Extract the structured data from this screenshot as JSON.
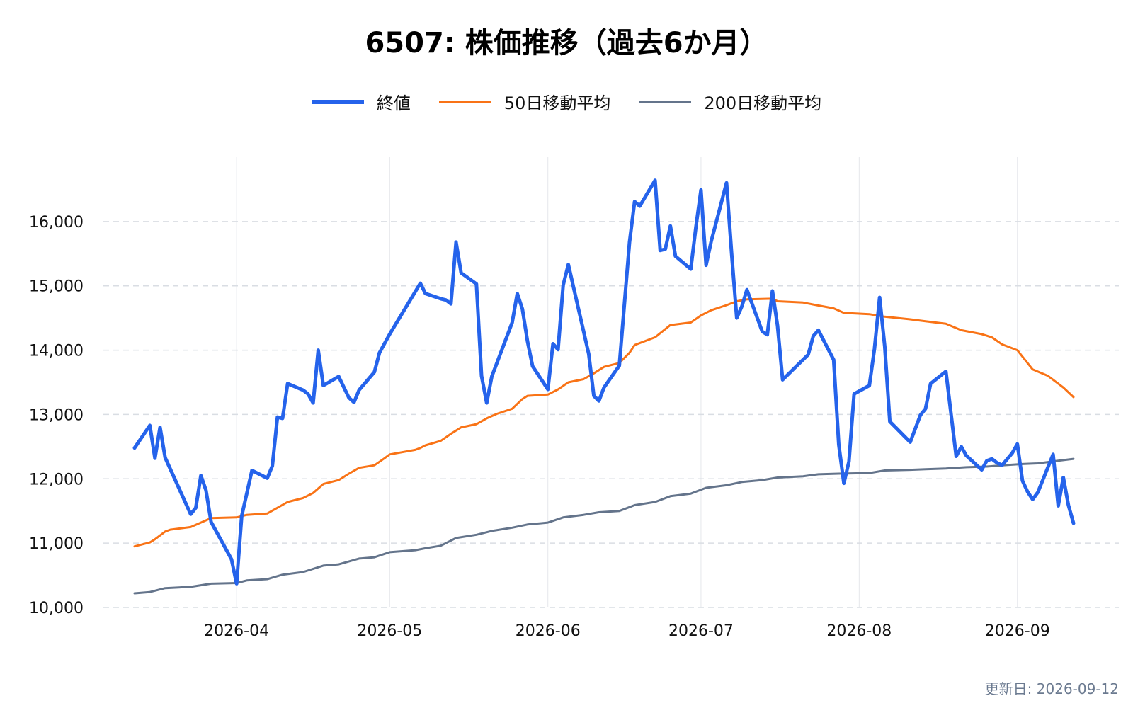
{
  "chart_data": {
    "type": "line",
    "title": "6507: 株価推移（過去6か月）",
    "xlabel": "",
    "ylabel": "",
    "x_range": [
      "2026-03-12",
      "2026-09-12"
    ],
    "ylim": [
      10000,
      17000
    ],
    "y_ticks": [
      10000,
      11000,
      12000,
      13000,
      14000,
      15000,
      16000
    ],
    "y_tick_labels": [
      "10,000",
      "11,000",
      "12,000",
      "13,000",
      "14,000",
      "15,000",
      "16,000"
    ],
    "x_ticks": [
      "2026-04-01",
      "2026-05-01",
      "2026-06-01",
      "2026-07-01",
      "2026-08-01",
      "2026-09-01"
    ],
    "x_tick_labels": [
      "2026-04",
      "2026-05",
      "2026-06",
      "2026-07",
      "2026-08",
      "2026-09"
    ],
    "grid": "horizontal dashed, vertical solid light",
    "legend_position": "top-center",
    "series": [
      {
        "name": "終値",
        "color": "#2563eb",
        "points": [
          [
            "2026-03-12",
            12480
          ],
          [
            "2026-03-15",
            12830
          ],
          [
            "2026-03-16",
            12320
          ],
          [
            "2026-03-17",
            12800
          ],
          [
            "2026-03-18",
            12330
          ],
          [
            "2026-03-23",
            11450
          ],
          [
            "2026-03-24",
            11550
          ],
          [
            "2026-03-25",
            12050
          ],
          [
            "2026-03-26",
            11820
          ],
          [
            "2026-03-27",
            11330
          ],
          [
            "2026-03-31",
            10750
          ],
          [
            "2026-04-01",
            10370
          ],
          [
            "2026-04-02",
            11420
          ],
          [
            "2026-04-04",
            12130
          ],
          [
            "2026-04-07",
            12010
          ],
          [
            "2026-04-08",
            12200
          ],
          [
            "2026-04-09",
            12960
          ],
          [
            "2026-04-10",
            12940
          ],
          [
            "2026-04-11",
            13480
          ],
          [
            "2026-04-14",
            13380
          ],
          [
            "2026-04-15",
            13320
          ],
          [
            "2026-04-16",
            13180
          ],
          [
            "2026-04-17",
            14000
          ],
          [
            "2026-04-18",
            13450
          ],
          [
            "2026-04-21",
            13590
          ],
          [
            "2026-04-23",
            13260
          ],
          [
            "2026-04-24",
            13190
          ],
          [
            "2026-04-25",
            13380
          ],
          [
            "2026-04-28",
            13660
          ],
          [
            "2026-04-29",
            13960
          ],
          [
            "2026-05-01",
            14250
          ],
          [
            "2026-05-07",
            15040
          ],
          [
            "2026-05-08",
            14880
          ],
          [
            "2026-05-11",
            14800
          ],
          [
            "2026-05-12",
            14780
          ],
          [
            "2026-05-13",
            14720
          ],
          [
            "2026-05-14",
            15680
          ],
          [
            "2026-05-15",
            15200
          ],
          [
            "2026-05-18",
            15030
          ],
          [
            "2026-05-19",
            13600
          ],
          [
            "2026-05-20",
            13180
          ],
          [
            "2026-05-21",
            13590
          ],
          [
            "2026-05-25",
            14430
          ],
          [
            "2026-05-26",
            14880
          ],
          [
            "2026-05-27",
            14640
          ],
          [
            "2026-05-28",
            14140
          ],
          [
            "2026-05-29",
            13750
          ],
          [
            "2026-06-01",
            13390
          ],
          [
            "2026-06-02",
            14100
          ],
          [
            "2026-06-03",
            14010
          ],
          [
            "2026-06-04",
            15010
          ],
          [
            "2026-06-05",
            15330
          ],
          [
            "2026-06-08",
            14290
          ],
          [
            "2026-06-09",
            13940
          ],
          [
            "2026-06-10",
            13290
          ],
          [
            "2026-06-11",
            13210
          ],
          [
            "2026-06-12",
            13420
          ],
          [
            "2026-06-15",
            13760
          ],
          [
            "2026-06-17",
            15680
          ],
          [
            "2026-06-18",
            16310
          ],
          [
            "2026-06-19",
            16240
          ],
          [
            "2026-06-22",
            16640
          ],
          [
            "2026-06-23",
            15550
          ],
          [
            "2026-06-24",
            15570
          ],
          [
            "2026-06-25",
            15930
          ],
          [
            "2026-06-26",
            15460
          ],
          [
            "2026-06-29",
            15260
          ],
          [
            "2026-06-30",
            15910
          ],
          [
            "2026-07-01",
            16490
          ],
          [
            "2026-07-02",
            15320
          ],
          [
            "2026-07-03",
            15690
          ],
          [
            "2026-07-06",
            16600
          ],
          [
            "2026-07-07",
            15500
          ],
          [
            "2026-07-08",
            14500
          ],
          [
            "2026-07-09",
            14680
          ],
          [
            "2026-07-10",
            14940
          ],
          [
            "2026-07-13",
            14290
          ],
          [
            "2026-07-14",
            14240
          ],
          [
            "2026-07-15",
            14920
          ],
          [
            "2026-07-16",
            14380
          ],
          [
            "2026-07-17",
            13540
          ],
          [
            "2026-07-22",
            13930
          ],
          [
            "2026-07-23",
            14220
          ],
          [
            "2026-07-24",
            14310
          ],
          [
            "2026-07-27",
            13850
          ],
          [
            "2026-07-28",
            12530
          ],
          [
            "2026-07-29",
            11930
          ],
          [
            "2026-07-30",
            12270
          ],
          [
            "2026-07-31",
            13320
          ],
          [
            "2026-08-03",
            13450
          ],
          [
            "2026-08-04",
            14020
          ],
          [
            "2026-08-05",
            14820
          ],
          [
            "2026-08-06",
            14060
          ],
          [
            "2026-08-07",
            12890
          ],
          [
            "2026-08-11",
            12570
          ],
          [
            "2026-08-13",
            12990
          ],
          [
            "2026-08-14",
            13090
          ],
          [
            "2026-08-15",
            13480
          ],
          [
            "2026-08-18",
            13670
          ],
          [
            "2026-08-20",
            12350
          ],
          [
            "2026-08-21",
            12500
          ],
          [
            "2026-08-22",
            12360
          ],
          [
            "2026-08-25",
            12140
          ],
          [
            "2026-08-26",
            12280
          ],
          [
            "2026-08-27",
            12310
          ],
          [
            "2026-08-28",
            12250
          ],
          [
            "2026-08-29",
            12210
          ],
          [
            "2026-08-31",
            12400
          ],
          [
            "2026-09-01",
            12540
          ],
          [
            "2026-09-02",
            11970
          ],
          [
            "2026-09-03",
            11800
          ],
          [
            "2026-09-04",
            11680
          ],
          [
            "2026-09-05",
            11790
          ],
          [
            "2026-09-08",
            12380
          ],
          [
            "2026-09-09",
            11580
          ],
          [
            "2026-09-10",
            12020
          ],
          [
            "2026-09-11",
            11590
          ],
          [
            "2026-09-12",
            11310
          ]
        ]
      },
      {
        "name": "50日移動平均",
        "color": "#f97316",
        "points": [
          [
            "2026-03-12",
            10950
          ],
          [
            "2026-03-15",
            11010
          ],
          [
            "2026-03-16",
            11060
          ],
          [
            "2026-03-18",
            11180
          ],
          [
            "2026-03-19",
            11210
          ],
          [
            "2026-03-23",
            11250
          ],
          [
            "2026-03-25",
            11320
          ],
          [
            "2026-03-27",
            11390
          ],
          [
            "2026-04-01",
            11400
          ],
          [
            "2026-04-03",
            11440
          ],
          [
            "2026-04-07",
            11460
          ],
          [
            "2026-04-09",
            11550
          ],
          [
            "2026-04-11",
            11640
          ],
          [
            "2026-04-14",
            11700
          ],
          [
            "2026-04-16",
            11780
          ],
          [
            "2026-04-18",
            11920
          ],
          [
            "2026-04-21",
            11980
          ],
          [
            "2026-04-23",
            12080
          ],
          [
            "2026-04-25",
            12170
          ],
          [
            "2026-04-28",
            12210
          ],
          [
            "2026-04-30",
            12320
          ],
          [
            "2026-05-01",
            12380
          ],
          [
            "2026-05-06",
            12450
          ],
          [
            "2026-05-07",
            12480
          ],
          [
            "2026-05-08",
            12520
          ],
          [
            "2026-05-11",
            12590
          ],
          [
            "2026-05-13",
            12700
          ],
          [
            "2026-05-15",
            12800
          ],
          [
            "2026-05-18",
            12850
          ],
          [
            "2026-05-20",
            12940
          ],
          [
            "2026-05-22",
            13010
          ],
          [
            "2026-05-25",
            13090
          ],
          [
            "2026-05-27",
            13240
          ],
          [
            "2026-05-28",
            13290
          ],
          [
            "2026-06-01",
            13310
          ],
          [
            "2026-06-03",
            13390
          ],
          [
            "2026-06-05",
            13500
          ],
          [
            "2026-06-08",
            13550
          ],
          [
            "2026-06-10",
            13640
          ],
          [
            "2026-06-12",
            13740
          ],
          [
            "2026-06-15",
            13800
          ],
          [
            "2026-06-17",
            13960
          ],
          [
            "2026-06-18",
            14080
          ],
          [
            "2026-06-22",
            14200
          ],
          [
            "2026-06-25",
            14390
          ],
          [
            "2026-06-29",
            14430
          ],
          [
            "2026-07-01",
            14540
          ],
          [
            "2026-07-03",
            14620
          ],
          [
            "2026-07-06",
            14700
          ],
          [
            "2026-07-08",
            14760
          ],
          [
            "2026-07-10",
            14790
          ],
          [
            "2026-07-15",
            14800
          ],
          [
            "2026-07-16",
            14760
          ],
          [
            "2026-07-21",
            14740
          ],
          [
            "2026-07-23",
            14710
          ],
          [
            "2026-07-27",
            14650
          ],
          [
            "2026-07-29",
            14580
          ],
          [
            "2026-08-03",
            14560
          ],
          [
            "2026-08-06",
            14520
          ],
          [
            "2026-08-11",
            14480
          ],
          [
            "2026-08-14",
            14450
          ],
          [
            "2026-08-18",
            14410
          ],
          [
            "2026-08-21",
            14310
          ],
          [
            "2026-08-25",
            14250
          ],
          [
            "2026-08-27",
            14200
          ],
          [
            "2026-08-29",
            14090
          ],
          [
            "2026-09-01",
            14000
          ],
          [
            "2026-09-02",
            13900
          ],
          [
            "2026-09-04",
            13700
          ],
          [
            "2026-09-07",
            13600
          ],
          [
            "2026-09-10",
            13420
          ],
          [
            "2026-09-12",
            13270
          ]
        ]
      },
      {
        "name": "200日移動平均",
        "color": "#64748b",
        "points": [
          [
            "2026-03-12",
            10220
          ],
          [
            "2026-03-15",
            10240
          ],
          [
            "2026-03-18",
            10300
          ],
          [
            "2026-03-23",
            10320
          ],
          [
            "2026-03-27",
            10370
          ],
          [
            "2026-04-01",
            10380
          ],
          [
            "2026-04-03",
            10420
          ],
          [
            "2026-04-07",
            10440
          ],
          [
            "2026-04-10",
            10510
          ],
          [
            "2026-04-14",
            10550
          ],
          [
            "2026-04-18",
            10650
          ],
          [
            "2026-04-21",
            10670
          ],
          [
            "2026-04-25",
            10760
          ],
          [
            "2026-04-28",
            10780
          ],
          [
            "2026-05-01",
            10860
          ],
          [
            "2026-05-06",
            10890
          ],
          [
            "2026-05-08",
            10920
          ],
          [
            "2026-05-11",
            10960
          ],
          [
            "2026-05-14",
            11080
          ],
          [
            "2026-05-18",
            11130
          ],
          [
            "2026-05-21",
            11190
          ],
          [
            "2026-05-25",
            11240
          ],
          [
            "2026-05-28",
            11290
          ],
          [
            "2026-06-01",
            11320
          ],
          [
            "2026-06-04",
            11400
          ],
          [
            "2026-06-08",
            11440
          ],
          [
            "2026-06-11",
            11480
          ],
          [
            "2026-06-15",
            11500
          ],
          [
            "2026-06-18",
            11590
          ],
          [
            "2026-06-22",
            11640
          ],
          [
            "2026-06-25",
            11730
          ],
          [
            "2026-06-29",
            11770
          ],
          [
            "2026-07-02",
            11860
          ],
          [
            "2026-07-06",
            11900
          ],
          [
            "2026-07-09",
            11950
          ],
          [
            "2026-07-13",
            11980
          ],
          [
            "2026-07-16",
            12020
          ],
          [
            "2026-07-21",
            12040
          ],
          [
            "2026-07-24",
            12070
          ],
          [
            "2026-07-28",
            12080
          ],
          [
            "2026-08-03",
            12090
          ],
          [
            "2026-08-06",
            12130
          ],
          [
            "2026-08-11",
            12140
          ],
          [
            "2026-08-14",
            12150
          ],
          [
            "2026-08-18",
            12160
          ],
          [
            "2026-08-22",
            12180
          ],
          [
            "2026-08-26",
            12190
          ],
          [
            "2026-08-29",
            12210
          ],
          [
            "2026-09-02",
            12230
          ],
          [
            "2026-09-05",
            12240
          ],
          [
            "2026-09-09",
            12280
          ],
          [
            "2026-09-12",
            12310
          ]
        ]
      }
    ]
  },
  "footer": {
    "updated": "更新日: 2026-09-12"
  }
}
